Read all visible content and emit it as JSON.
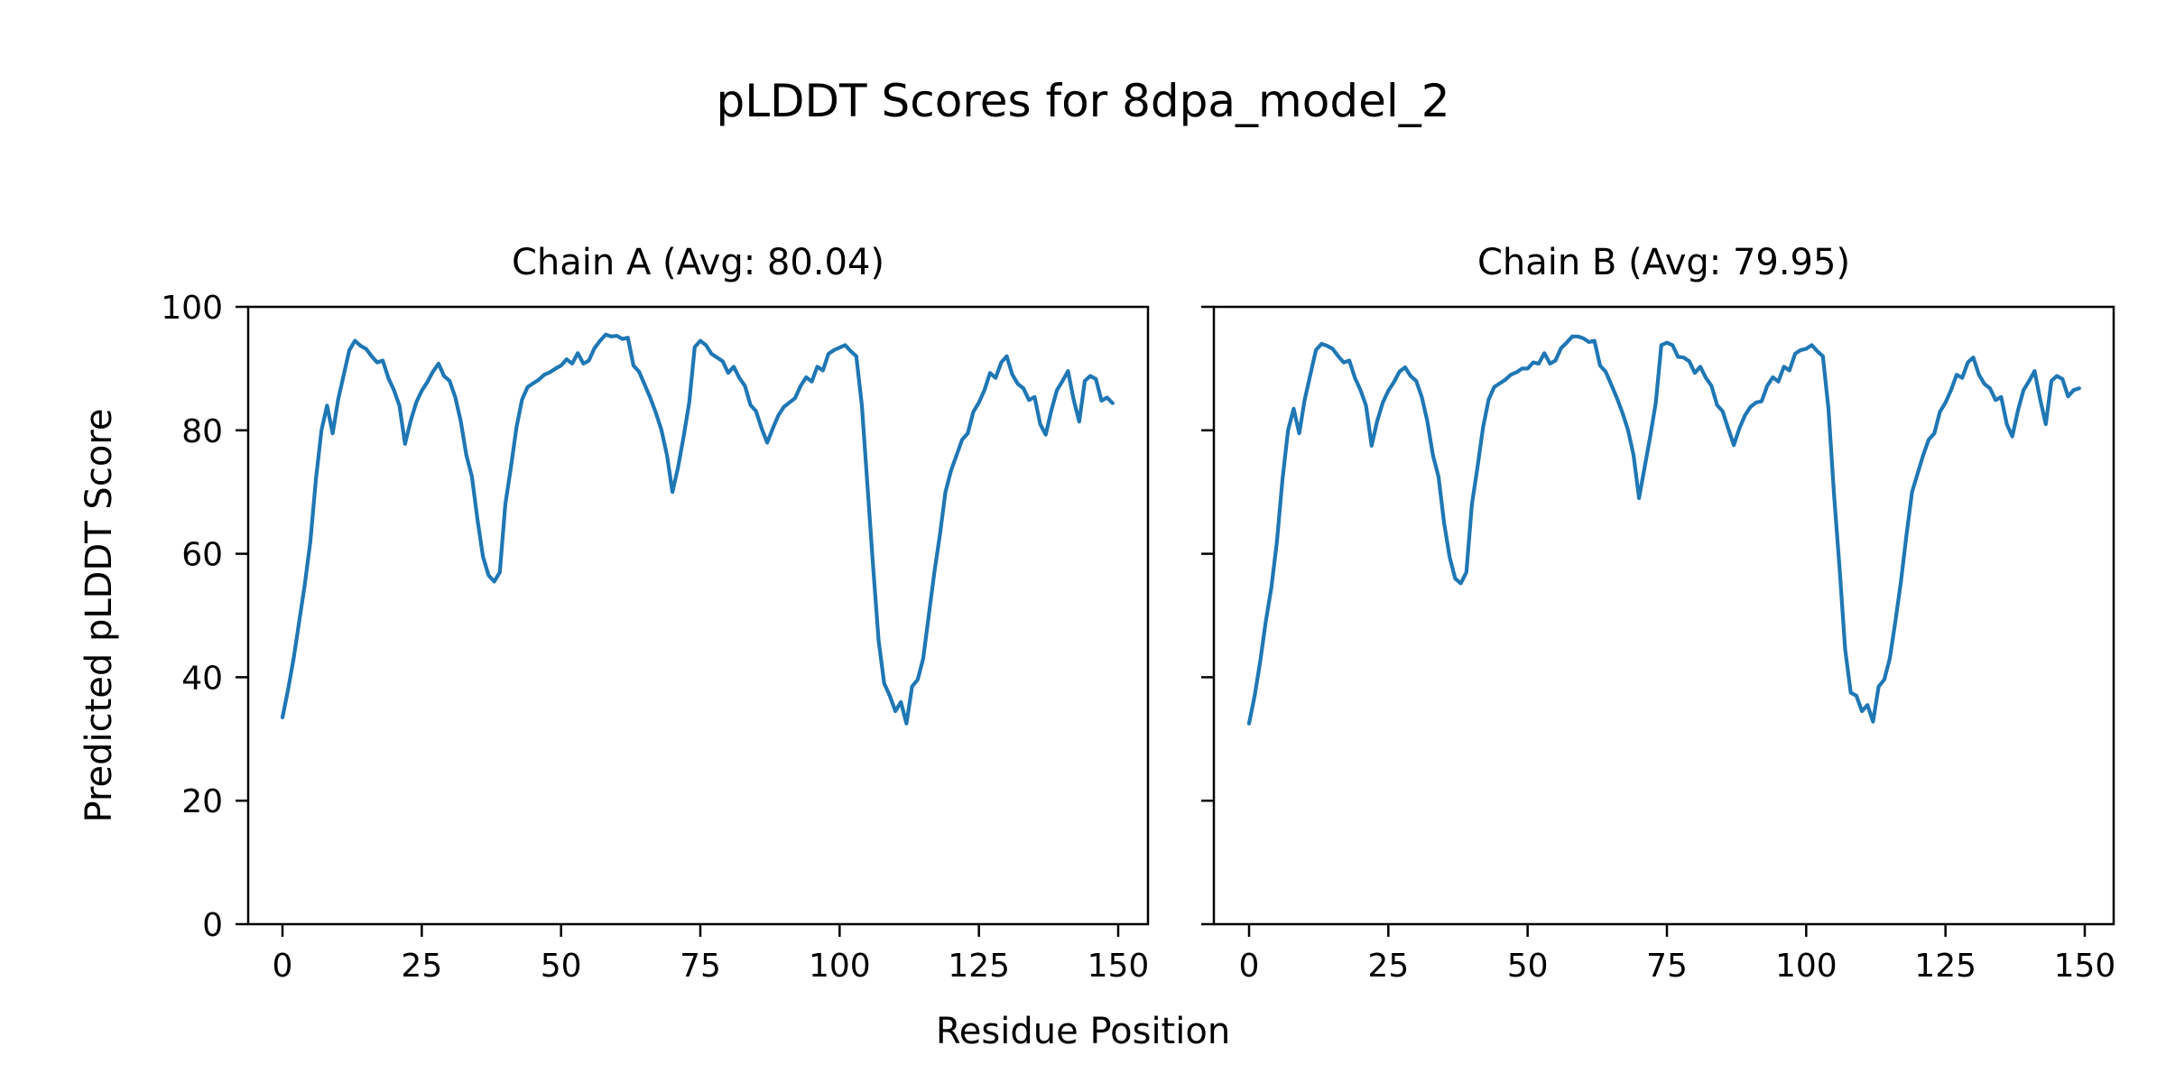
{
  "figure": {
    "title": "pLDDT Scores for 8dpa_model_2",
    "xlabel": "Residue Position",
    "ylabel": "Predicted pLDDT Score",
    "background_color": "#ffffff",
    "text_color": "#000000"
  },
  "chart_data": [
    {
      "type": "line",
      "title": "Chain A (Avg: 80.04)",
      "series_name": "Chain A pLDDT",
      "avg_label_value": "80.04",
      "line_color": "#1f77b4",
      "x_start": 0,
      "x_step": 1,
      "xlim": [
        -6.2,
        155.4
      ],
      "ylim": [
        0,
        100
      ],
      "xticks": [
        0,
        25,
        50,
        75,
        100,
        125,
        150
      ],
      "yticks": [
        0,
        20,
        40,
        60,
        80,
        100
      ],
      "ytick_labels_visible": true,
      "grid": false,
      "legend": "none",
      "values": [
        33.5,
        38,
        43,
        49,
        55,
        62,
        72,
        80,
        84,
        79.5,
        85,
        89,
        93,
        94.5,
        93.7,
        93.2,
        92,
        91,
        91.3,
        88.5,
        86.5,
        84,
        77.8,
        81.5,
        84.5,
        86.4,
        87.8,
        89.5,
        90.8,
        88.8,
        88,
        85.4,
        81.5,
        76,
        72.5,
        65.5,
        59.5,
        56.5,
        55.5,
        57,
        68,
        74,
        80.5,
        85,
        87,
        87.6,
        88.2,
        89,
        89.4,
        90,
        90.5,
        91.5,
        90.8,
        92.5,
        90.8,
        91.3,
        93.3,
        94.5,
        95.5,
        95.2,
        95.3,
        94.8,
        95,
        90.5,
        89.5,
        87.4,
        85.3,
        82.9,
        80.1,
        76,
        70,
        74,
        79,
        84.5,
        93.5,
        94.5,
        93.8,
        92.4,
        91.8,
        91.2,
        89.3,
        90.3,
        88.5,
        87.2,
        84.1,
        83.1,
        80.3,
        78,
        80.3,
        82.4,
        83.8,
        84.5,
        85.2,
        87.2,
        88.6,
        87.9,
        90.3,
        89.7,
        92.4,
        93,
        93.4,
        93.8,
        92.8,
        92,
        84,
        71,
        58,
        46,
        39,
        37,
        34.5,
        36,
        32.5,
        38.5,
        39.6,
        43,
        50,
        57,
        63,
        70,
        73.5,
        76,
        78.5,
        79.5,
        83,
        84.5,
        86.5,
        89.3,
        88.5,
        91,
        92,
        89,
        87.5,
        86.8,
        84.9,
        85.4,
        81,
        79.3,
        83.2,
        86.5,
        88,
        89.6,
        85,
        81.4,
        88,
        88.8,
        88.3,
        84.8,
        85.3,
        84.4
      ]
    },
    {
      "type": "line",
      "title": "Chain B (Avg: 79.95)",
      "series_name": "Chain B pLDDT",
      "avg_label_value": "79.95",
      "line_color": "#1f77b4",
      "x_start": 0,
      "x_step": 1,
      "xlim": [
        -6.2,
        155.4
      ],
      "ylim": [
        0,
        100
      ],
      "xticks": [
        0,
        25,
        50,
        75,
        100,
        125,
        150
      ],
      "yticks": [
        0,
        20,
        40,
        60,
        80,
        100
      ],
      "ytick_labels_visible": false,
      "grid": false,
      "legend": "none",
      "values": [
        32.5,
        37,
        42.5,
        49,
        54.5,
        62,
        72,
        80,
        83.5,
        79.5,
        85,
        89,
        93,
        94,
        93.7,
        93.2,
        92,
        91,
        91.3,
        88.5,
        86.5,
        84,
        77.5,
        81.5,
        84.5,
        86.4,
        87.8,
        89.5,
        90.2,
        88.8,
        88,
        85.4,
        81.5,
        76,
        72.5,
        65,
        59.5,
        56,
        55.2,
        57,
        68,
        74,
        80.5,
        85,
        87,
        87.6,
        88.2,
        89,
        89.4,
        90,
        90,
        91,
        90.8,
        92.5,
        90.8,
        91.3,
        93.3,
        94.2,
        95.2,
        95.2,
        94.9,
        94.3,
        94.5,
        90.5,
        89.5,
        87.4,
        85.3,
        82.9,
        80.1,
        76,
        69,
        74,
        79,
        84.5,
        93.8,
        94.2,
        93.8,
        91.9,
        91.8,
        91.2,
        89.3,
        90.3,
        88.5,
        87.2,
        84.1,
        83.1,
        80.3,
        77.6,
        80.3,
        82.4,
        83.8,
        84.5,
        84.7,
        87.2,
        88.6,
        87.9,
        90.3,
        89.7,
        92.4,
        93,
        93.2,
        93.8,
        92.8,
        92,
        83.5,
        69.5,
        57.5,
        44.5,
        37.5,
        37,
        34.5,
        35.5,
        32.8,
        38.5,
        39.6,
        43,
        49,
        55.5,
        63,
        70,
        73,
        76,
        78.5,
        79.5,
        83,
        84.5,
        86.5,
        89,
        88.5,
        91,
        91.8,
        89,
        87.5,
        86.8,
        84.9,
        85.4,
        81,
        79,
        83.2,
        86.5,
        88,
        89.6,
        85,
        81,
        88,
        88.8,
        88.3,
        85.5,
        86.5,
        86.8
      ]
    }
  ]
}
